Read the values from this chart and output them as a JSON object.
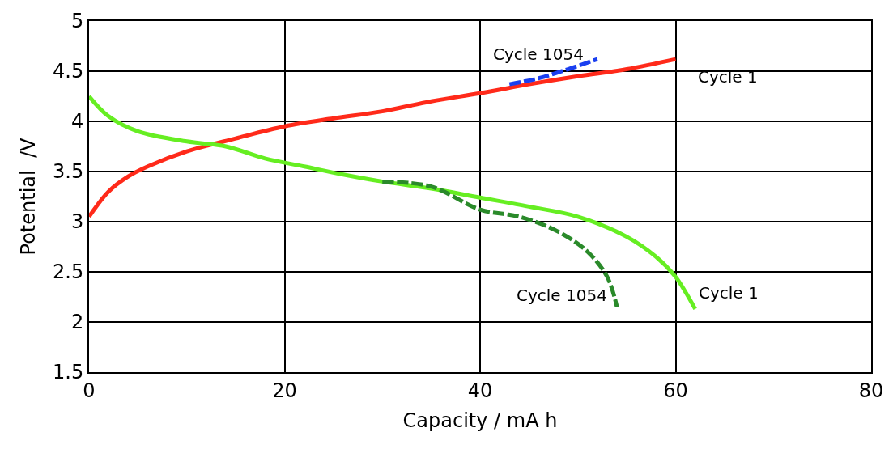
{
  "chart_data": {
    "type": "line",
    "xlabel": "Capacity / mA h",
    "ylabel": "Potential  /V",
    "xlim": [
      0,
      80
    ],
    "xticks": [
      0,
      20,
      40,
      60,
      80
    ],
    "ylim": [
      1.5,
      5
    ],
    "yticks": [
      1.5,
      2,
      2.5,
      3,
      3.5,
      4,
      4.5,
      5
    ],
    "grid": true,
    "legend": false,
    "series": [
      {
        "name": "Cycle 1",
        "color": "#ff2a1a",
        "line_style": "solid",
        "x": [
          0,
          2,
          4,
          6,
          10,
          15,
          20,
          25,
          30,
          35,
          40,
          45,
          50,
          55,
          60
        ],
        "values": [
          3.05,
          3.3,
          3.45,
          3.55,
          3.7,
          3.83,
          3.95,
          4.03,
          4.1,
          4.2,
          4.28,
          4.37,
          4.45,
          4.52,
          4.62
        ]
      },
      {
        "name": "Cycle 1054",
        "color": "#1a3ff0",
        "line_style": "dashed",
        "x": [
          43,
          46,
          49,
          52
        ],
        "values": [
          4.37,
          4.43,
          4.52,
          4.62
        ]
      },
      {
        "name": "Cycle 1",
        "color": "#66ee22",
        "line_style": "solid",
        "x": [
          0,
          2,
          5,
          10,
          14,
          18,
          22,
          26,
          30,
          35,
          40,
          45,
          50,
          55,
          58,
          60,
          61,
          62
        ],
        "values": [
          4.25,
          4.05,
          3.9,
          3.8,
          3.75,
          3.63,
          3.55,
          3.47,
          3.4,
          3.33,
          3.24,
          3.15,
          3.05,
          2.85,
          2.65,
          2.45,
          2.3,
          2.13
        ]
      },
      {
        "name": "Cycle 1054",
        "color": "#2a8a2a",
        "line_style": "dashed",
        "x": [
          30,
          35,
          40,
          44,
          48,
          51,
          53,
          54
        ],
        "values": [
          3.4,
          3.35,
          3.12,
          3.05,
          2.9,
          2.7,
          2.45,
          2.15
        ]
      }
    ]
  }
}
